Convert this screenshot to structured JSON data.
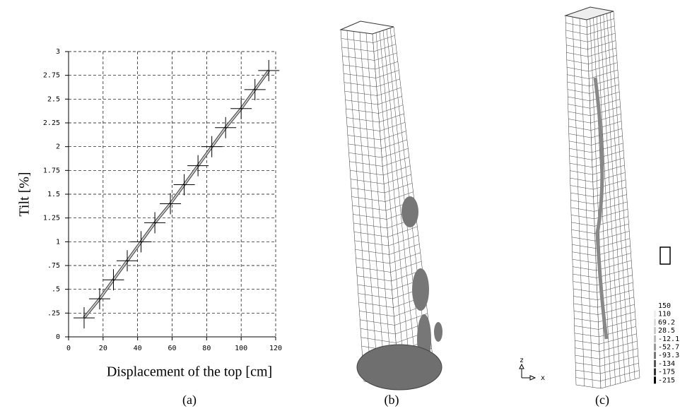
{
  "chart_data": {
    "type": "line",
    "ylabel": "Tilt [%]",
    "xlabel": "Displacement of the top [cm]",
    "x": [
      9,
      18,
      26,
      34,
      42,
      50,
      59,
      67,
      75,
      83,
      91,
      100,
      108,
      116
    ],
    "series": [
      {
        "color": "#555555",
        "values": [
          0.2,
          0.4,
          0.6,
          0.8,
          1.0,
          1.2,
          1.4,
          1.6,
          1.8,
          2.0,
          2.2,
          2.4,
          2.6,
          2.8
        ]
      }
    ],
    "xlim": [
      0,
      120
    ],
    "xticks": [
      0,
      20,
      40,
      60,
      80,
      100,
      120
    ],
    "ylim": [
      0,
      3
    ],
    "yticks": [
      0,
      {
        "value": 0.25,
        "label": ".25"
      },
      {
        "value": 0.5,
        "label": ".5"
      },
      {
        "value": 0.75,
        "label": ".75"
      },
      1,
      1.25,
      1.5,
      1.75,
      2,
      2.25,
      2.5,
      2.75,
      3
    ],
    "grid": true
  },
  "panels": [
    "(a)",
    "(b)",
    "(c)"
  ],
  "triad": {
    "z": "z",
    "x": "x"
  },
  "contour_legend": [
    "150",
    "110",
    "69.2",
    "28.5",
    "-12.1",
    "-52.7",
    "-93.3",
    "-134",
    "-175",
    "-215"
  ]
}
